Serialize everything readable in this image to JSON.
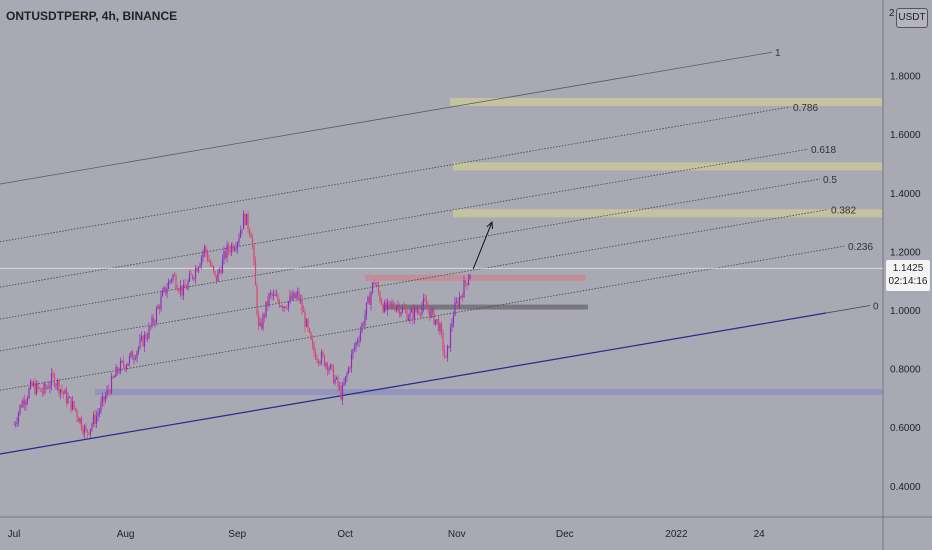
{
  "header": {
    "symbol_label": "ONTUSDTPERP, 4h, BINANCE",
    "currency": "USDT",
    "corner_label": "2"
  },
  "price_tag": {
    "price": "1.1425",
    "countdown": "02:14:16"
  },
  "colors": {
    "background": "#a9a9b4",
    "candle_up": "#8b2fbf",
    "candle_down": "#d9446e",
    "channel_base": "#2a2a8e",
    "fib_lines": "#444444",
    "zone_yellow": "#c9c89b",
    "zone_red": "#c58a95",
    "zone_gray": "#6f6f73",
    "zone_blue": "#8f92c0"
  },
  "chart_data": {
    "type": "candlestick",
    "title": "ONTUSDTPERP, 4h, BINANCE",
    "y_axis": {
      "ticks": [
        "1.8000",
        "1.6000",
        "1.4000",
        "1.2000",
        "1.0000",
        "0.8000",
        "0.6000",
        "0.4000"
      ],
      "tick_values": [
        1.8,
        1.6,
        1.4,
        1.2,
        1.0,
        0.8,
        0.6,
        0.4
      ],
      "range": [
        0.3,
        2.0
      ]
    },
    "x_axis": {
      "ticks": [
        "Jul",
        "Aug",
        "Sep",
        "Oct",
        "Nov",
        "Dec",
        "2022",
        "24"
      ]
    },
    "last_price": 1.1425,
    "price_path": [
      [
        "2021-07-01",
        0.61
      ],
      [
        "2021-07-03",
        0.68
      ],
      [
        "2021-07-06",
        0.74
      ],
      [
        "2021-07-09",
        0.72
      ],
      [
        "2021-07-12",
        0.77
      ],
      [
        "2021-07-15",
        0.71
      ],
      [
        "2021-07-18",
        0.66
      ],
      [
        "2021-07-21",
        0.58
      ],
      [
        "2021-07-24",
        0.64
      ],
      [
        "2021-07-27",
        0.72
      ],
      [
        "2021-07-30",
        0.8
      ],
      [
        "2021-08-02",
        0.83
      ],
      [
        "2021-08-05",
        0.88
      ],
      [
        "2021-08-08",
        0.94
      ],
      [
        "2021-08-11",
        1.04
      ],
      [
        "2021-08-14",
        1.12
      ],
      [
        "2021-08-17",
        1.06
      ],
      [
        "2021-08-20",
        1.13
      ],
      [
        "2021-08-23",
        1.21
      ],
      [
        "2021-08-26",
        1.1
      ],
      [
        "2021-08-29",
        1.2
      ],
      [
        "2021-09-01",
        1.24
      ],
      [
        "2021-09-03",
        1.32
      ],
      [
        "2021-09-05",
        1.26
      ],
      [
        "2021-09-07",
        0.92
      ],
      [
        "2021-09-10",
        1.05
      ],
      [
        "2021-09-14",
        1.02
      ],
      [
        "2021-09-18",
        1.05
      ],
      [
        "2021-09-22",
        0.86
      ],
      [
        "2021-09-26",
        0.82
      ],
      [
        "2021-09-30",
        0.71
      ],
      [
        "2021-10-03",
        0.85
      ],
      [
        "2021-10-06",
        0.96
      ],
      [
        "2021-10-09",
        1.1
      ],
      [
        "2021-10-12",
        1.0
      ],
      [
        "2021-10-15",
        1.02
      ],
      [
        "2021-10-19",
        0.98
      ],
      [
        "2021-10-23",
        1.02
      ],
      [
        "2021-10-27",
        0.95
      ],
      [
        "2021-10-29",
        0.82
      ],
      [
        "2021-10-31",
        0.99
      ],
      [
        "2021-11-02",
        1.05
      ],
      [
        "2021-11-05",
        1.14
      ]
    ],
    "fibonacci_channel": {
      "levels": [
        "0",
        "0.236",
        "0.382",
        "0.5",
        "0.618",
        "0.786",
        "1"
      ],
      "level_values": [
        0,
        0.236,
        0.382,
        0.5,
        0.618,
        0.786,
        1
      ]
    },
    "zones": [
      {
        "color": "yellow",
        "price": 1.71
      },
      {
        "color": "yellow",
        "price": 1.49
      },
      {
        "color": "yellow",
        "price": 1.33
      },
      {
        "color": "red",
        "price": 1.11
      },
      {
        "color": "gray",
        "price": 1.01
      },
      {
        "color": "blue",
        "price": 0.72
      }
    ],
    "projection_arrow": {
      "from_price": 1.14,
      "to_price": 1.3
    }
  }
}
